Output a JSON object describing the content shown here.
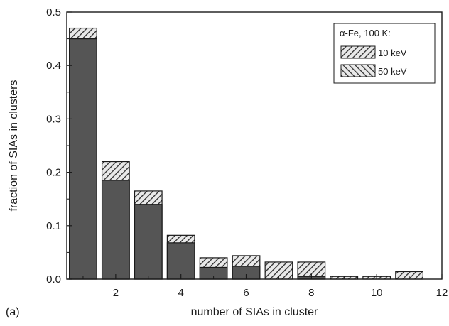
{
  "panel_label": "(a)",
  "chart_data": {
    "type": "bar",
    "title": "",
    "xlabel": "number of SIAs in cluster",
    "ylabel": "fraction of SIAs in clusters",
    "xlim": [
      0.5,
      12
    ],
    "ylim": [
      0,
      0.5
    ],
    "x_ticks": [
      2,
      4,
      6,
      8,
      10,
      12
    ],
    "y_ticks": [
      0.0,
      0.1,
      0.2,
      0.3,
      0.4,
      0.5
    ],
    "x": [
      1,
      2,
      3,
      4,
      5,
      6,
      7,
      8,
      9,
      10,
      11
    ],
    "series": [
      {
        "name": "10 keV",
        "pattern": "forward-hatch",
        "values": [
          0.47,
          0.22,
          0.165,
          0.082,
          0.04,
          0.044,
          0.032,
          0.032,
          0.005,
          0.005,
          0.014
        ]
      },
      {
        "name": "50 keV",
        "pattern": "back-hatch",
        "values": [
          0.45,
          0.185,
          0.14,
          0.068,
          0.022,
          0.024,
          0.0,
          0.005,
          0.0,
          0.0,
          0.0
        ]
      }
    ],
    "legend": {
      "title": "α-Fe, 100 K:",
      "position": "top-right"
    },
    "colors": {
      "bar_fill": "#555555",
      "hatch": "#2b2b2b",
      "axis": "#1a1a1a"
    }
  }
}
